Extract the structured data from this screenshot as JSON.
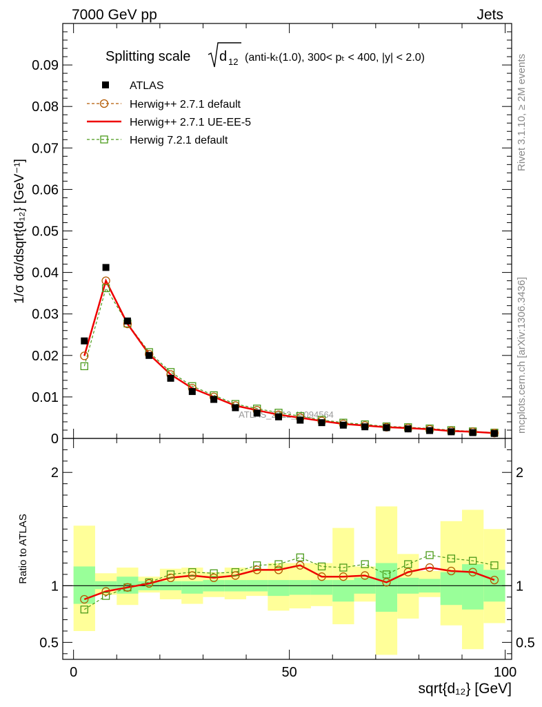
{
  "header": {
    "left": "7000 GeV pp",
    "right": "Jets"
  },
  "side_text": {
    "rivet": "Rivet 3.1.10, ≥ 2M events",
    "mcplots": "mcplots.cern.ch [arXiv:1306.3436]"
  },
  "watermark": "ATLAS_2012_I1094564",
  "chart_data": {
    "type": "line",
    "title": {
      "prefix": "Splitting scale",
      "sqrt_base": "d",
      "sqrt_sub": "12",
      "cuts_text": "(anti-kₜ(1.0), 300< pₜ < 400, |y| < 2.0)"
    },
    "main_panel": {
      "ylabel": "1/σ dσ/dsqrt{d₁₂} [GeV⁻¹]",
      "ylim": [
        0,
        0.1
      ],
      "yticks": [
        0,
        0.01,
        0.02,
        0.03,
        0.04,
        0.05,
        0.06,
        0.07,
        0.08,
        0.09
      ],
      "ytick_labels": [
        "0",
        "0.01",
        "0.02",
        "0.03",
        "0.04",
        "0.05",
        "0.06",
        "0.07",
        "0.08",
        "0.09"
      ]
    },
    "ratio_panel": {
      "ylabel": "Ratio to ATLAS",
      "ylim": [
        0.35,
        2.3
      ],
      "yticks": [
        0.5,
        1,
        2
      ],
      "ytick_labels": [
        "0.5",
        "1",
        "2"
      ]
    },
    "x": {
      "label": "sqrt{d₁₂} [GeV]",
      "xlim": [
        -2.5,
        101.5
      ],
      "ticks": [
        0,
        50,
        100
      ],
      "tick_labels": [
        "0",
        "50",
        "100"
      ]
    },
    "bin_edges": [
      0,
      5,
      10,
      15,
      20,
      25,
      30,
      35,
      40,
      45,
      50,
      55,
      60,
      65,
      70,
      75,
      80,
      85,
      90,
      95,
      100
    ],
    "x_centers": [
      2.5,
      7.5,
      12.5,
      17.5,
      22.5,
      27.5,
      32.5,
      37.5,
      42.5,
      47.5,
      52.5,
      57.5,
      62.5,
      67.5,
      72.5,
      77.5,
      82.5,
      87.5,
      92.5,
      97.5
    ],
    "series": [
      {
        "name": "ATLAS",
        "kind": "data",
        "color": "#000000",
        "values": [
          0.0235,
          0.0412,
          0.0283,
          0.02,
          0.0145,
          0.0113,
          0.0094,
          0.0074,
          0.0061,
          0.0052,
          0.0044,
          0.0038,
          0.0032,
          0.0028,
          0.0026,
          0.0023,
          0.0019,
          0.0016,
          0.0014,
          0.0012
        ],
        "ratio": [
          1,
          1,
          1,
          1,
          1,
          1,
          1,
          1,
          1,
          1,
          1,
          1,
          1,
          1,
          1,
          1,
          1,
          1,
          1,
          1
        ]
      },
      {
        "name": "Herwig++ 2.7.1 default",
        "kind": "mc-circle-dashed",
        "color": "#b35900",
        "values": [
          0.0199,
          0.038,
          0.0276,
          0.0203,
          0.0154,
          0.0121,
          0.01,
          0.0079,
          0.0068,
          0.0057,
          0.005,
          0.0042,
          0.0035,
          0.0031,
          0.0027,
          0.0025,
          0.0022,
          0.0018,
          0.0016,
          0.0013
        ],
        "ratio": [
          0.88,
          0.95,
          0.985,
          1.02,
          1.07,
          1.09,
          1.07,
          1.09,
          1.14,
          1.14,
          1.18,
          1.08,
          1.08,
          1.09,
          1.03,
          1.12,
          1.16,
          1.13,
          1.12,
          1.05
        ]
      },
      {
        "name": "Herwig++ 2.7.1 UE-EE-5",
        "kind": "mc-solid",
        "color": "#ee0000",
        "values": [
          0.0199,
          0.038,
          0.0276,
          0.0203,
          0.0154,
          0.0121,
          0.01,
          0.0079,
          0.0068,
          0.0057,
          0.005,
          0.0042,
          0.0035,
          0.0031,
          0.0027,
          0.0025,
          0.0022,
          0.0018,
          0.0016,
          0.0013
        ],
        "ratio": [
          0.88,
          0.95,
          0.985,
          1.02,
          1.07,
          1.09,
          1.07,
          1.09,
          1.14,
          1.14,
          1.18,
          1.08,
          1.08,
          1.09,
          1.03,
          1.12,
          1.16,
          1.13,
          1.12,
          1.05
        ]
      },
      {
        "name": "Herwig 7.2.1 default",
        "kind": "mc-square-dashed",
        "color": "#4a9a1a",
        "values": [
          0.0174,
          0.0362,
          0.0277,
          0.0208,
          0.016,
          0.0126,
          0.0104,
          0.0083,
          0.0072,
          0.0062,
          0.0054,
          0.0045,
          0.0038,
          0.0034,
          0.0029,
          0.0027,
          0.0024,
          0.002,
          0.0017,
          0.0014
        ],
        "ratio": [
          0.79,
          0.91,
          0.985,
          1.03,
          1.1,
          1.12,
          1.11,
          1.12,
          1.18,
          1.19,
          1.25,
          1.17,
          1.16,
          1.19,
          1.1,
          1.19,
          1.27,
          1.24,
          1.22,
          1.18
        ]
      }
    ],
    "ratio_bands": {
      "stat_color": "#99ff99",
      "total_color": "#ffff99",
      "stat": [
        [
          0.84,
          1.17
        ],
        [
          0.97,
          1.04
        ],
        [
          0.93,
          1.08
        ],
        [
          0.96,
          1.04
        ],
        [
          0.96,
          1.04
        ],
        [
          0.93,
          1.04
        ],
        [
          0.95,
          1.05
        ],
        [
          0.95,
          1.05
        ],
        [
          0.95,
          1.05
        ],
        [
          0.91,
          1.05
        ],
        [
          0.92,
          1.05
        ],
        [
          0.92,
          1.05
        ],
        [
          0.86,
          1.05
        ],
        [
          0.93,
          1.07
        ],
        [
          0.77,
          1.2
        ],
        [
          0.93,
          1.07
        ],
        [
          0.94,
          1.06
        ],
        [
          0.83,
          1.12
        ],
        [
          0.79,
          1.19
        ],
        [
          0.86,
          1.14
        ]
      ],
      "total": [
        [
          0.6,
          1.53
        ],
        [
          0.92,
          1.11
        ],
        [
          0.83,
          1.16
        ],
        [
          0.94,
          1.08
        ],
        [
          0.88,
          1.15
        ],
        [
          0.84,
          1.16
        ],
        [
          0.9,
          1.12
        ],
        [
          0.88,
          1.16
        ],
        [
          0.91,
          1.15
        ],
        [
          0.78,
          1.2
        ],
        [
          0.8,
          1.2
        ],
        [
          0.82,
          1.2
        ],
        [
          0.66,
          1.51
        ],
        [
          0.86,
          1.17
        ],
        [
          0.39,
          1.7
        ],
        [
          0.71,
          1.28
        ],
        [
          0.9,
          1.13
        ],
        [
          0.65,
          1.57
        ],
        [
          0.44,
          1.67
        ],
        [
          0.67,
          1.5
        ]
      ]
    },
    "reference_line": 1,
    "grid": false,
    "legend_position": "top-left"
  }
}
